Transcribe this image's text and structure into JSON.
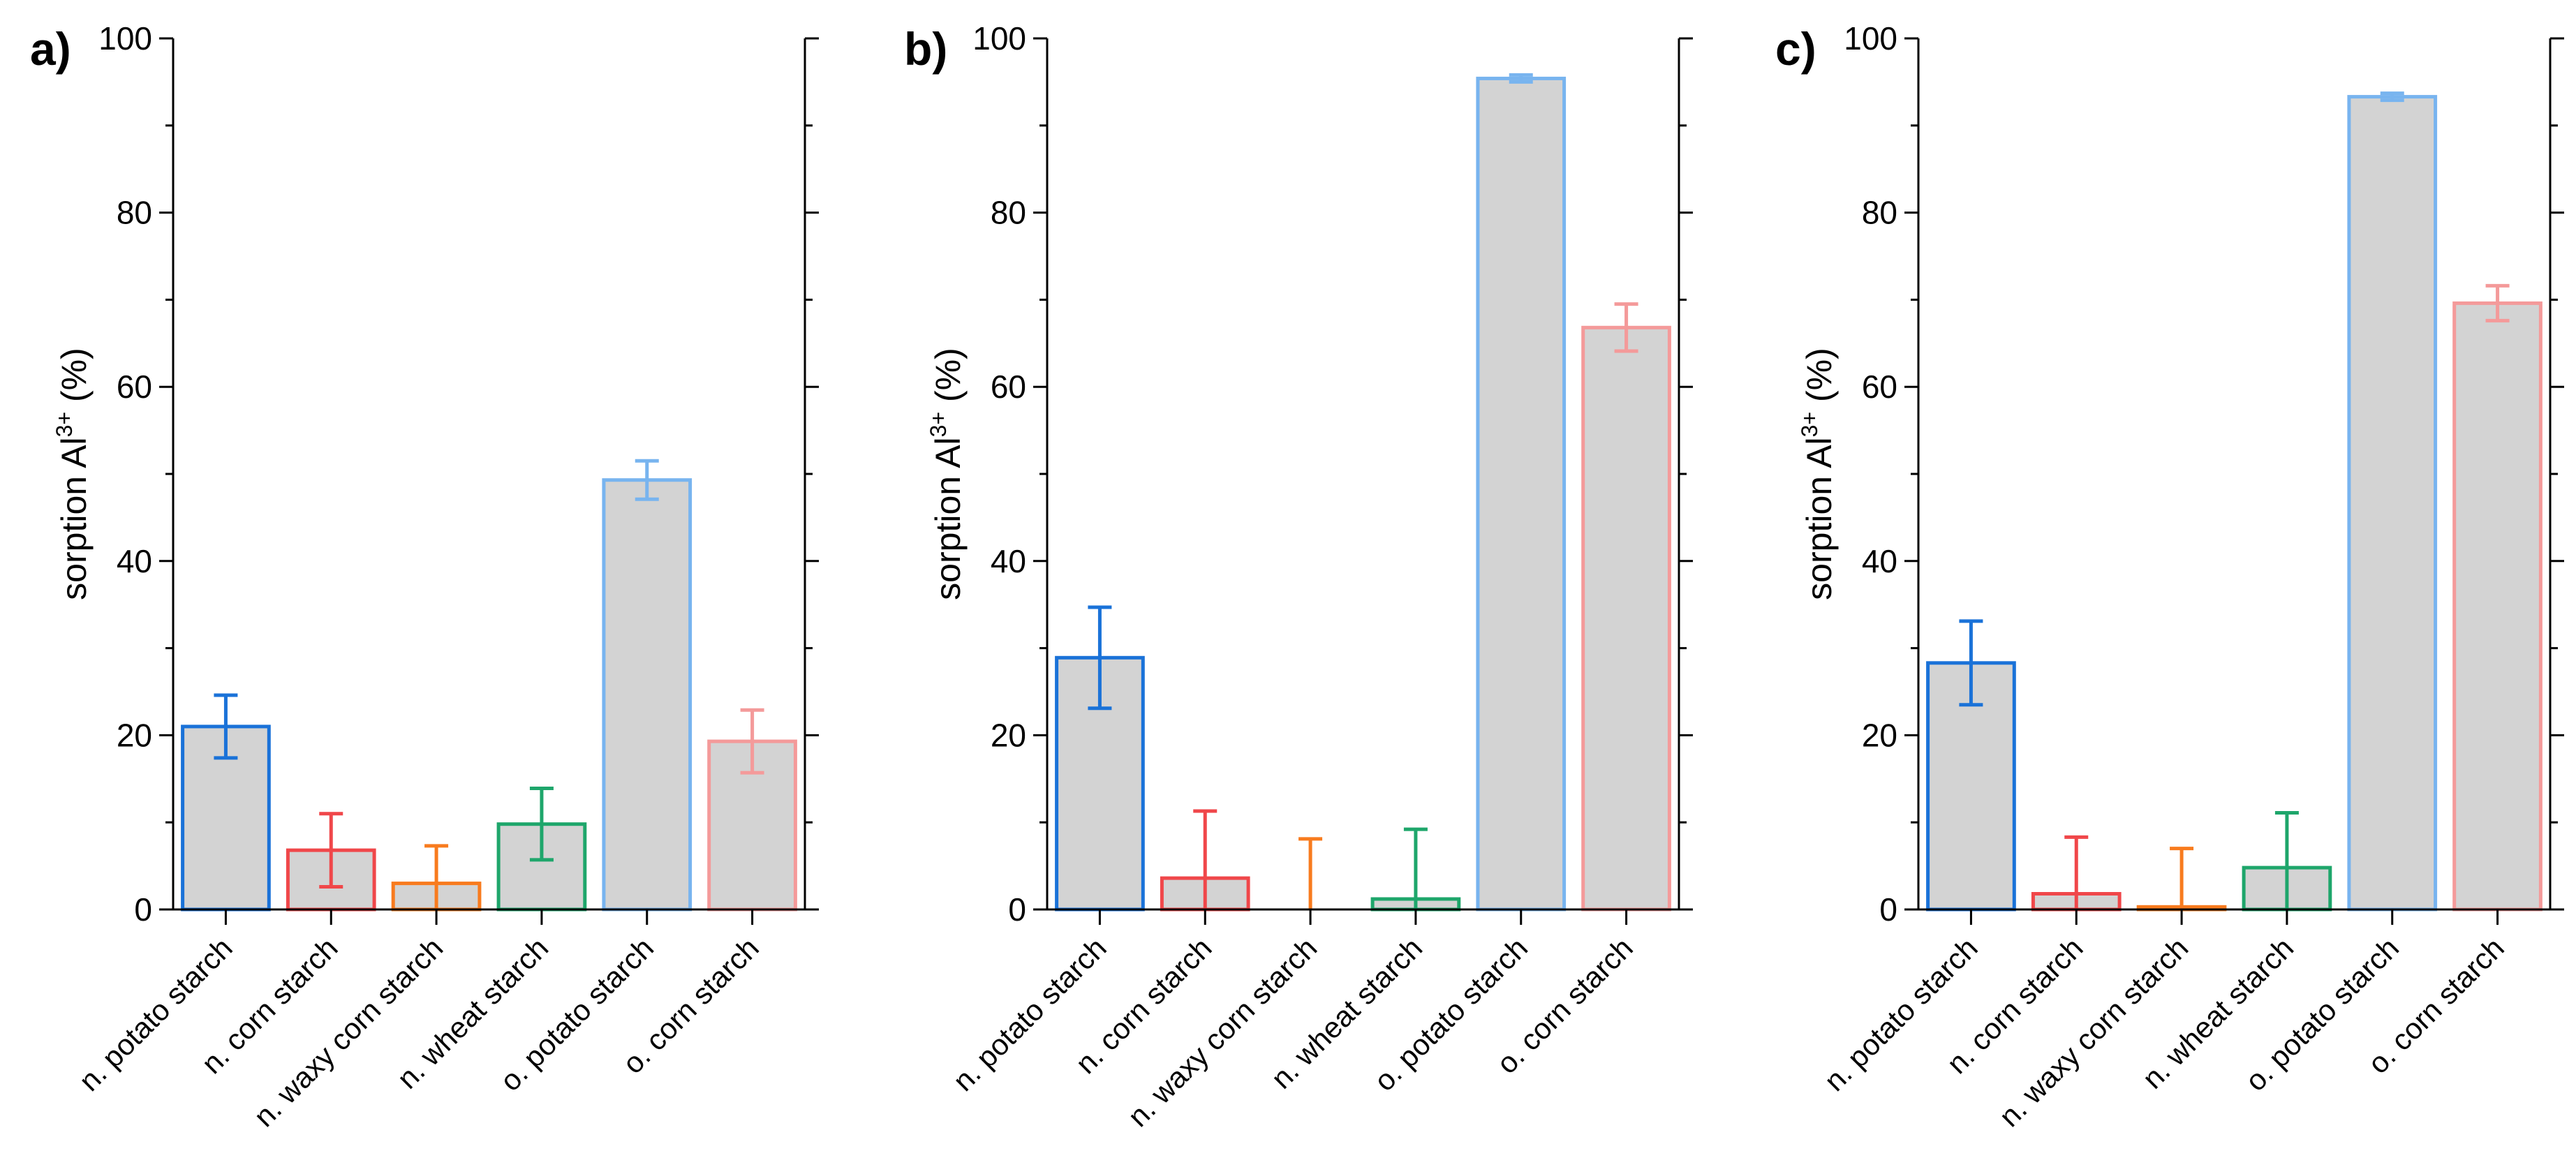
{
  "chart_data": [
    {
      "type": "bar",
      "panel_label": "a)",
      "ylabel": {
        "prefix": "sorption Al",
        "superscript": "3+",
        "suffix": " (%)"
      },
      "ylim": [
        0,
        100
      ],
      "yticks": [
        "0",
        "20",
        "40",
        "60",
        "80",
        "100"
      ],
      "categories": [
        "n. potato starch",
        "n. corn starch",
        "n. waxy corn starch",
        "n. wheat starch",
        "o. potato starch",
        "o. corn starch"
      ],
      "values": [
        21.0,
        6.8,
        3.0,
        9.8,
        49.3,
        19.3
      ],
      "errors": [
        3.6,
        4.2,
        4.3,
        4.1,
        2.2,
        3.6
      ]
    },
    {
      "type": "bar",
      "panel_label": "b)",
      "ylabel": {
        "prefix": "sorption Al",
        "superscript": "3+",
        "suffix": " (%)"
      },
      "ylim": [
        0,
        100
      ],
      "yticks": [
        "0",
        "20",
        "40",
        "60",
        "80",
        "100"
      ],
      "categories": [
        "n. potato starch",
        "n. corn starch",
        "n. waxy corn starch",
        "n. wheat starch",
        "o. potato starch",
        "o. corn starch"
      ],
      "values": [
        28.9,
        3.6,
        0,
        1.2,
        95.4,
        66.8
      ],
      "errors": [
        5.8,
        7.7,
        8.1,
        8.0,
        0.4,
        2.7
      ]
    },
    {
      "type": "bar",
      "panel_label": "c)",
      "ylabel": {
        "prefix": "sorption Al",
        "superscript": "3+",
        "suffix": " (%)"
      },
      "ylim": [
        0,
        100
      ],
      "yticks": [
        "0",
        "20",
        "40",
        "60",
        "80",
        "100"
      ],
      "categories": [
        "n. potato starch",
        "n. corn starch",
        "n. waxy corn starch",
        "n. wheat starch",
        "o. potato starch",
        "o. corn starch"
      ],
      "values": [
        28.3,
        1.8,
        0.3,
        4.8,
        93.3,
        69.6
      ],
      "errors": [
        4.8,
        6.5,
        6.7,
        6.3,
        0.4,
        2.0
      ]
    }
  ],
  "colors": {
    "bar_fill": "#d3d3d3",
    "series_edges": [
      "#1a72d8",
      "#f0474a",
      "#f87b1e",
      "#1ea66b",
      "#78b4ef",
      "#f49a9a"
    ],
    "axis": "#000000"
  }
}
